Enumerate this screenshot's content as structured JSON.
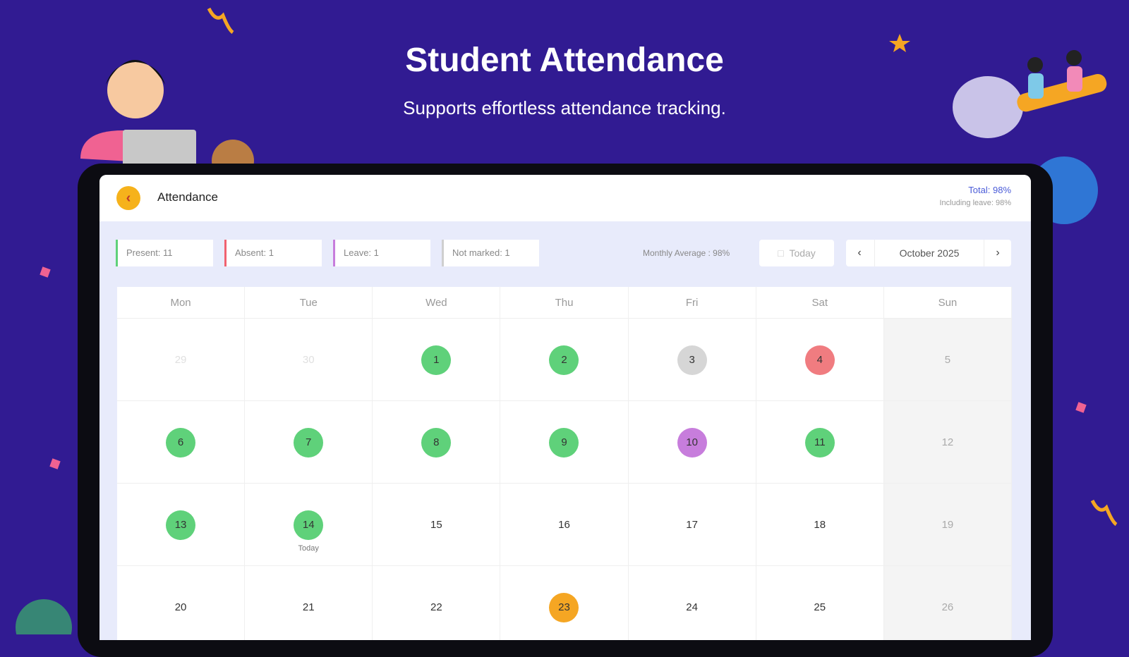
{
  "header": {
    "title": "Student Attendance",
    "subtitle": "Supports effortless attendance tracking."
  },
  "app": {
    "title": "Attendance",
    "total": "Total: 98%",
    "including_leave": "Including leave: 98%",
    "stats": [
      {
        "label": "Present: 11",
        "color": "#5fd17a"
      },
      {
        "label": "Absent: 1",
        "color": "#f06270"
      },
      {
        "label": "Leave: 1",
        "color": "#c77ddc"
      },
      {
        "label": "Not marked: 1",
        "color": "#cfcfcf"
      }
    ],
    "monthly_average": "Monthly Average : 98%",
    "today_button": "Today",
    "month": "October 2025",
    "weekdays": [
      "Mon",
      "Tue",
      "Wed",
      "Thu",
      "Fri",
      "Sat",
      "Sun"
    ],
    "weeks": [
      [
        {
          "day": "29",
          "muted": true
        },
        {
          "day": "30",
          "muted": true
        },
        {
          "day": "1",
          "color": "#5fd17a"
        },
        {
          "day": "2",
          "color": "#5fd17a"
        },
        {
          "day": "3",
          "color": "#d6d6d6"
        },
        {
          "day": "4",
          "color": "#f07c80"
        },
        {
          "day": "5"
        }
      ],
      [
        {
          "day": "6",
          "color": "#5fd17a"
        },
        {
          "day": "7",
          "color": "#5fd17a"
        },
        {
          "day": "8",
          "color": "#5fd17a"
        },
        {
          "day": "9",
          "color": "#5fd17a"
        },
        {
          "day": "10",
          "color": "#c77ddc"
        },
        {
          "day": "11",
          "color": "#5fd17a"
        },
        {
          "day": "12"
        }
      ],
      [
        {
          "day": "13",
          "color": "#5fd17a"
        },
        {
          "day": "14",
          "color": "#5fd17a",
          "note": "Today"
        },
        {
          "day": "15"
        },
        {
          "day": "16"
        },
        {
          "day": "17"
        },
        {
          "day": "18"
        },
        {
          "day": "19"
        }
      ],
      [
        {
          "day": "20"
        },
        {
          "day": "21"
        },
        {
          "day": "22"
        },
        {
          "day": "23",
          "color": "#f5a623"
        },
        {
          "day": "24"
        },
        {
          "day": "25"
        },
        {
          "day": "26"
        }
      ]
    ]
  }
}
